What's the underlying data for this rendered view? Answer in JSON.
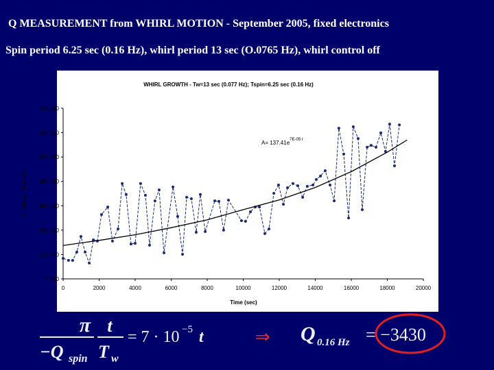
{
  "slide": {
    "title": "Q  MEASUREMENT  from WHIRL MOTION - September 2005, fixed electronics",
    "subtitle": "Spin period 6.25 sec (0.16 Hz), whirl period 13 sec (O.0765 Hz), whirl control off"
  },
  "chart_data": {
    "type": "line",
    "title": "WHIRL GROWTH - Tw=13 sec (0.077 Hz); Tspin=6.25 sec (0.16 Hz)",
    "x_label": "Time (sec)",
    "y_label": "Amplitude (microV)",
    "annotation": {
      "text": "A= 137.41e",
      "exponent": "7E-05 t"
    },
    "xlim": [
      0,
      20000
    ],
    "ylim": [
      0,
      700000
    ],
    "xticks": [
      0,
      2000,
      4000,
      6000,
      8000,
      10000,
      12000,
      14000,
      16000,
      18000,
      20000
    ],
    "yticks": [
      {
        "value": 0,
        "label": "0,000"
      },
      {
        "value": 100000,
        "label": "100,000"
      },
      {
        "value": 200000,
        "label": "200,000"
      },
      {
        "value": 300000,
        "label": "300,000"
      },
      {
        "value": 400000,
        "label": "400,000"
      },
      {
        "value": 500000,
        "label": "500,000"
      },
      {
        "value": 600000,
        "label": "600,000"
      },
      {
        "value": 700000,
        "label": "700,000"
      }
    ],
    "series": [
      {
        "color": "#1a2a78",
        "dashed": true,
        "markers": true,
        "x": [
          0,
          300,
          530,
          760,
          990,
          1220,
          1450,
          1680,
          1900,
          2130,
          2480,
          2740,
          3050,
          3280,
          3500,
          3770,
          4000,
          4300,
          4570,
          4800,
          5100,
          5330,
          5600,
          6100,
          6360,
          6630,
          6860,
          7120,
          7390,
          7620,
          7890,
          8420,
          8650,
          8910,
          9180,
          9900,
          10130,
          10400,
          10670,
          10900,
          11200,
          11430,
          11700,
          11960,
          12230,
          12460,
          12760,
          13030,
          13300,
          13560,
          13870,
          14060,
          14290,
          14550,
          14820,
          15050,
          15310,
          15580,
          15850,
          16110,
          16380,
          16610,
          16880,
          17100,
          17370,
          17640,
          17900,
          18130,
          18400,
          18670
        ],
        "values": [
          84000,
          76000,
          76000,
          110000,
          174000,
          110000,
          65000,
          160000,
          155000,
          264000,
          295000,
          155000,
          205000,
          391000,
          346000,
          143000,
          146000,
          391000,
          343000,
          138000,
          320000,
          365000,
          107000,
          377000,
          256000,
          101000,
          335000,
          329000,
          191000,
          346000,
          194000,
          320000,
          318000,
          200000,
          323000,
          239000,
          236000,
          275000,
          295000,
          295000,
          186000,
          205000,
          351000,
          385000,
          306000,
          374000,
          391000,
          382000,
          335000,
          380000,
          385000,
          408000,
          422000,
          444000,
          385000,
          320000,
          618000,
          512000,
          250000,
          624000,
          576000,
          284000,
          540000,
          548000,
          540000,
          599000,
          523000,
          635000,
          464000,
          632000
        ]
      },
      {
        "color": "#000000",
        "dashed": false,
        "markers": false,
        "x": [
          0,
          2000,
          4000,
          6000,
          8000,
          10000,
          12000,
          14000,
          16000,
          18000,
          19100
        ],
        "values": [
          137000,
          158000,
          181000,
          210000,
          242000,
          284000,
          324000,
          375000,
          440000,
          520000,
          570000
        ]
      }
    ]
  },
  "equation": {
    "pi": "π",
    "q": "−Q",
    "q_sub": "spin",
    "t": "t",
    "tw": "T",
    "tw_sub": "w",
    "rhs": "= 7 · 10",
    "rhs_exp": "−5",
    "rhs_t": "t",
    "arrow": "⇒",
    "result_q": "Q",
    "result_sub": "0.16 Hz",
    "result_value": "= −3430"
  }
}
